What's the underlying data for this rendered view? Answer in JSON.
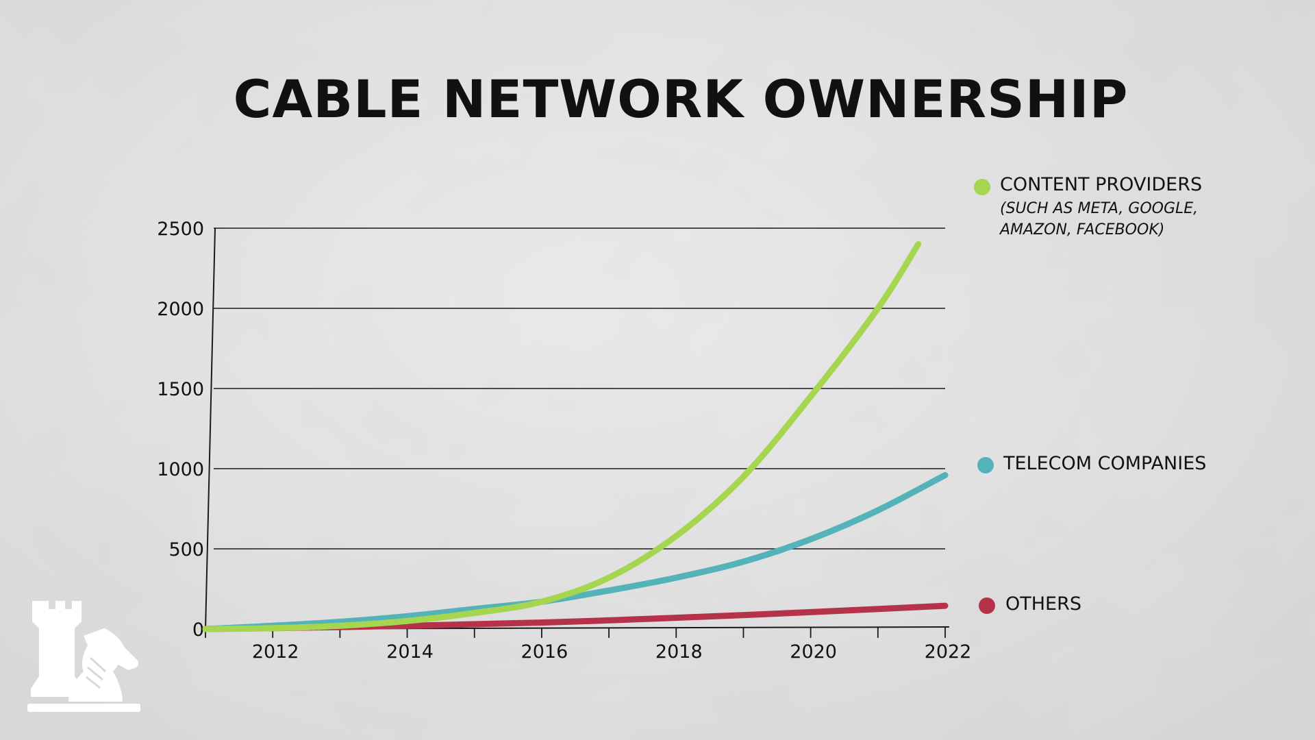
{
  "chart_data": {
    "type": "line",
    "title": "CABLE NETWORK OWNERSHIP",
    "xlabel": "",
    "ylabel": "",
    "xlim": [
      2011,
      2022
    ],
    "ylim": [
      0,
      2500
    ],
    "x_ticks": [
      2012,
      2014,
      2016,
      2018,
      2020,
      2022
    ],
    "x_tick_labels": [
      "2012",
      "2014",
      "2016",
      "2018",
      "2020",
      "2022"
    ],
    "y_ticks": [
      0,
      500,
      1000,
      1500,
      2000,
      2500
    ],
    "y_tick_labels": [
      "0",
      "500",
      "1000",
      "1500",
      "2000",
      "2500"
    ],
    "grid": "horizontal",
    "legend_position": "right",
    "series": [
      {
        "name": "CONTENT PROVIDERS",
        "note": "(SUCH AS META, GOOGLE, AMAZON, FACEBOOK)",
        "color": "#a6d64f",
        "x": [
          2011,
          2012,
          2013,
          2014,
          2015,
          2016,
          2017,
          2018,
          2019,
          2020,
          2021,
          2021.6
        ],
        "y": [
          0,
          5,
          20,
          50,
          100,
          170,
          320,
          580,
          950,
          1450,
          2000,
          2400
        ]
      },
      {
        "name": "TELECOM COMPANIES",
        "color": "#53b3b8",
        "x": [
          2011,
          2012,
          2013,
          2014,
          2015,
          2016,
          2017,
          2018,
          2019,
          2020,
          2021,
          2022
        ],
        "y": [
          0,
          20,
          45,
          80,
          125,
          170,
          240,
          320,
          420,
          560,
          740,
          960
        ]
      },
      {
        "name": "OTHERS",
        "color": "#b5334a",
        "x": [
          2011,
          2012,
          2014,
          2016,
          2018,
          2020,
          2022
        ],
        "y": [
          0,
          5,
          20,
          40,
          70,
          105,
          145
        ]
      }
    ]
  },
  "logo": {
    "icon": "chess-rook-knight-icon",
    "color": "#ffffff"
  }
}
